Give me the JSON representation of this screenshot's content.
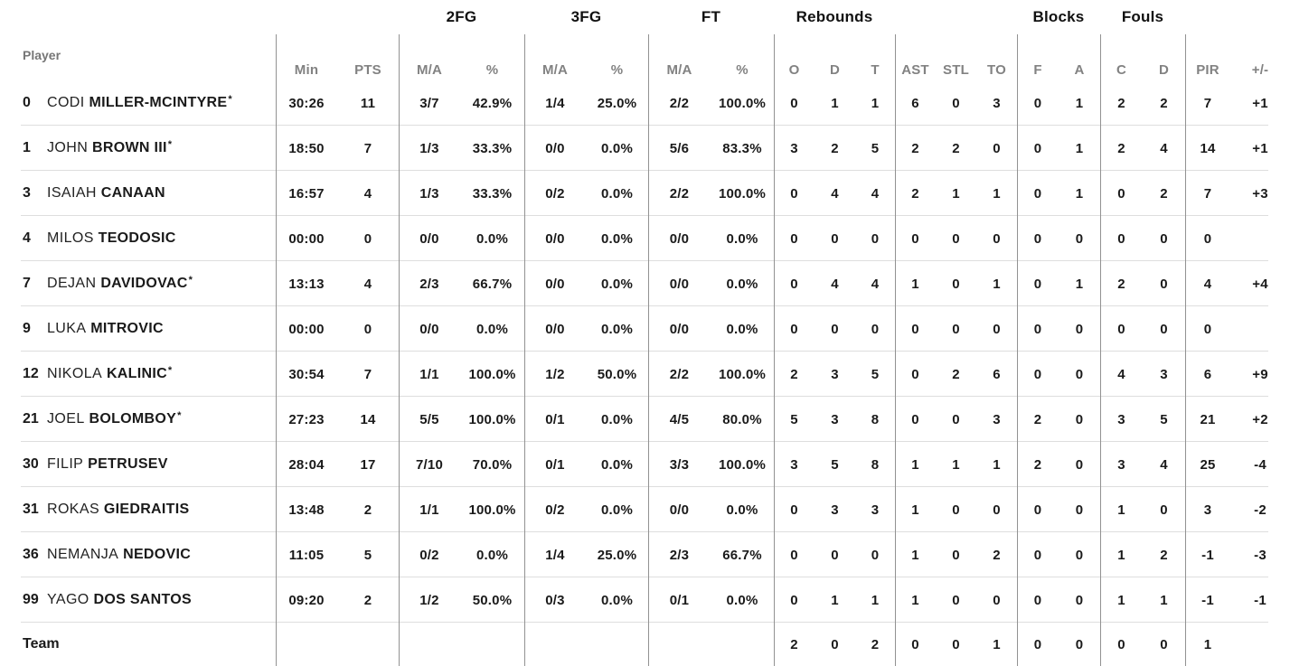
{
  "table": {
    "group_headers": {
      "fg2": "2FG",
      "fg3": "3FG",
      "ft": "FT",
      "rebounds": "Rebounds",
      "blocks": "Blocks",
      "fouls": "Fouls"
    },
    "sub_headers": {
      "player": "Player",
      "min": "Min",
      "pts": "PTS",
      "ma": "M/A",
      "pct": "%",
      "reb_o": "O",
      "reb_d": "D",
      "reb_t": "T",
      "ast": "AST",
      "stl": "STL",
      "to": "TO",
      "blk_f": "F",
      "blk_a": "A",
      "foul_c": "C",
      "foul_d": "D",
      "pir": "PIR",
      "plus_minus": "+/-"
    },
    "players": [
      {
        "number": "0",
        "first": "CODI",
        "last": "MILLER-MCINTYRE",
        "starter": true,
        "min": "30:26",
        "pts": "11",
        "fg2_ma": "3/7",
        "fg2_pct": "42.9%",
        "fg3_ma": "1/4",
        "fg3_pct": "25.0%",
        "ft_ma": "2/2",
        "ft_pct": "100.0%",
        "reb_o": "0",
        "reb_d": "1",
        "reb_t": "1",
        "ast": "6",
        "stl": "0",
        "to": "3",
        "blk_f": "0",
        "blk_a": "1",
        "foul_c": "2",
        "foul_d": "2",
        "pir": "7",
        "plus_minus": "+1"
      },
      {
        "number": "1",
        "first": "JOHN",
        "last": "BROWN III",
        "starter": true,
        "min": "18:50",
        "pts": "7",
        "fg2_ma": "1/3",
        "fg2_pct": "33.3%",
        "fg3_ma": "0/0",
        "fg3_pct": "0.0%",
        "ft_ma": "5/6",
        "ft_pct": "83.3%",
        "reb_o": "3",
        "reb_d": "2",
        "reb_t": "5",
        "ast": "2",
        "stl": "2",
        "to": "0",
        "blk_f": "0",
        "blk_a": "1",
        "foul_c": "2",
        "foul_d": "4",
        "pir": "14",
        "plus_minus": "+1"
      },
      {
        "number": "3",
        "first": "ISAIAH",
        "last": "CANAAN",
        "starter": false,
        "min": "16:57",
        "pts": "4",
        "fg2_ma": "1/3",
        "fg2_pct": "33.3%",
        "fg3_ma": "0/2",
        "fg3_pct": "0.0%",
        "ft_ma": "2/2",
        "ft_pct": "100.0%",
        "reb_o": "0",
        "reb_d": "4",
        "reb_t": "4",
        "ast": "2",
        "stl": "1",
        "to": "1",
        "blk_f": "0",
        "blk_a": "1",
        "foul_c": "0",
        "foul_d": "2",
        "pir": "7",
        "plus_minus": "+3"
      },
      {
        "number": "4",
        "first": "MILOS",
        "last": "TEODOSIC",
        "starter": false,
        "min": "00:00",
        "pts": "0",
        "fg2_ma": "0/0",
        "fg2_pct": "0.0%",
        "fg3_ma": "0/0",
        "fg3_pct": "0.0%",
        "ft_ma": "0/0",
        "ft_pct": "0.0%",
        "reb_o": "0",
        "reb_d": "0",
        "reb_t": "0",
        "ast": "0",
        "stl": "0",
        "to": "0",
        "blk_f": "0",
        "blk_a": "0",
        "foul_c": "0",
        "foul_d": "0",
        "pir": "0",
        "plus_minus": ""
      },
      {
        "number": "7",
        "first": "DEJAN",
        "last": "DAVIDOVAC",
        "starter": true,
        "min": "13:13",
        "pts": "4",
        "fg2_ma": "2/3",
        "fg2_pct": "66.7%",
        "fg3_ma": "0/0",
        "fg3_pct": "0.0%",
        "ft_ma": "0/0",
        "ft_pct": "0.0%",
        "reb_o": "0",
        "reb_d": "4",
        "reb_t": "4",
        "ast": "1",
        "stl": "0",
        "to": "1",
        "blk_f": "0",
        "blk_a": "1",
        "foul_c": "2",
        "foul_d": "0",
        "pir": "4",
        "plus_minus": "+4"
      },
      {
        "number": "9",
        "first": "LUKA",
        "last": "MITROVIC",
        "starter": false,
        "min": "00:00",
        "pts": "0",
        "fg2_ma": "0/0",
        "fg2_pct": "0.0%",
        "fg3_ma": "0/0",
        "fg3_pct": "0.0%",
        "ft_ma": "0/0",
        "ft_pct": "0.0%",
        "reb_o": "0",
        "reb_d": "0",
        "reb_t": "0",
        "ast": "0",
        "stl": "0",
        "to": "0",
        "blk_f": "0",
        "blk_a": "0",
        "foul_c": "0",
        "foul_d": "0",
        "pir": "0",
        "plus_minus": ""
      },
      {
        "number": "12",
        "first": "NIKOLA",
        "last": "KALINIC",
        "starter": true,
        "min": "30:54",
        "pts": "7",
        "fg2_ma": "1/1",
        "fg2_pct": "100.0%",
        "fg3_ma": "1/2",
        "fg3_pct": "50.0%",
        "ft_ma": "2/2",
        "ft_pct": "100.0%",
        "reb_o": "2",
        "reb_d": "3",
        "reb_t": "5",
        "ast": "0",
        "stl": "2",
        "to": "6",
        "blk_f": "0",
        "blk_a": "0",
        "foul_c": "4",
        "foul_d": "3",
        "pir": "6",
        "plus_minus": "+9"
      },
      {
        "number": "21",
        "first": "JOEL",
        "last": "BOLOMBOY",
        "starter": true,
        "min": "27:23",
        "pts": "14",
        "fg2_ma": "5/5",
        "fg2_pct": "100.0%",
        "fg3_ma": "0/1",
        "fg3_pct": "0.0%",
        "ft_ma": "4/5",
        "ft_pct": "80.0%",
        "reb_o": "5",
        "reb_d": "3",
        "reb_t": "8",
        "ast": "0",
        "stl": "0",
        "to": "3",
        "blk_f": "2",
        "blk_a": "0",
        "foul_c": "3",
        "foul_d": "5",
        "pir": "21",
        "plus_minus": "+2"
      },
      {
        "number": "30",
        "first": "FILIP",
        "last": "PETRUSEV",
        "starter": false,
        "min": "28:04",
        "pts": "17",
        "fg2_ma": "7/10",
        "fg2_pct": "70.0%",
        "fg3_ma": "0/1",
        "fg3_pct": "0.0%",
        "ft_ma": "3/3",
        "ft_pct": "100.0%",
        "reb_o": "3",
        "reb_d": "5",
        "reb_t": "8",
        "ast": "1",
        "stl": "1",
        "to": "1",
        "blk_f": "2",
        "blk_a": "0",
        "foul_c": "3",
        "foul_d": "4",
        "pir": "25",
        "plus_minus": "-4"
      },
      {
        "number": "31",
        "first": "ROKAS",
        "last": "GIEDRAITIS",
        "starter": false,
        "min": "13:48",
        "pts": "2",
        "fg2_ma": "1/1",
        "fg2_pct": "100.0%",
        "fg3_ma": "0/2",
        "fg3_pct": "0.0%",
        "ft_ma": "0/0",
        "ft_pct": "0.0%",
        "reb_o": "0",
        "reb_d": "3",
        "reb_t": "3",
        "ast": "1",
        "stl": "0",
        "to": "0",
        "blk_f": "0",
        "blk_a": "0",
        "foul_c": "1",
        "foul_d": "0",
        "pir": "3",
        "plus_minus": "-2"
      },
      {
        "number": "36",
        "first": "NEMANJA",
        "last": "NEDOVIC",
        "starter": false,
        "min": "11:05",
        "pts": "5",
        "fg2_ma": "0/2",
        "fg2_pct": "0.0%",
        "fg3_ma": "1/4",
        "fg3_pct": "25.0%",
        "ft_ma": "2/3",
        "ft_pct": "66.7%",
        "reb_o": "0",
        "reb_d": "0",
        "reb_t": "0",
        "ast": "1",
        "stl": "0",
        "to": "2",
        "blk_f": "0",
        "blk_a": "0",
        "foul_c": "1",
        "foul_d": "2",
        "pir": "-1",
        "plus_minus": "-3"
      },
      {
        "number": "99",
        "first": "YAGO",
        "last": "DOS SANTOS",
        "starter": false,
        "min": "09:20",
        "pts": "2",
        "fg2_ma": "1/2",
        "fg2_pct": "50.0%",
        "fg3_ma": "0/3",
        "fg3_pct": "0.0%",
        "ft_ma": "0/1",
        "ft_pct": "0.0%",
        "reb_o": "0",
        "reb_d": "1",
        "reb_t": "1",
        "ast": "1",
        "stl": "0",
        "to": "0",
        "blk_f": "0",
        "blk_a": "0",
        "foul_c": "1",
        "foul_d": "1",
        "pir": "-1",
        "plus_minus": "-1"
      }
    ],
    "team": {
      "label": "Team",
      "min": "",
      "pts": "",
      "fg2_ma": "",
      "fg2_pct": "",
      "fg3_ma": "",
      "fg3_pct": "",
      "ft_ma": "",
      "ft_pct": "",
      "reb_o": "2",
      "reb_d": "0",
      "reb_t": "2",
      "ast": "0",
      "stl": "0",
      "to": "1",
      "blk_f": "0",
      "blk_a": "0",
      "foul_c": "0",
      "foul_d": "0",
      "pir": "1",
      "plus_minus": ""
    },
    "starter_marker": "*"
  },
  "colors": {
    "text_dark": "#1a1a1a",
    "header_gray": "#828282",
    "vertical_divider": "#929292",
    "row_separator": "#dedede",
    "background": "#ffffff"
  }
}
